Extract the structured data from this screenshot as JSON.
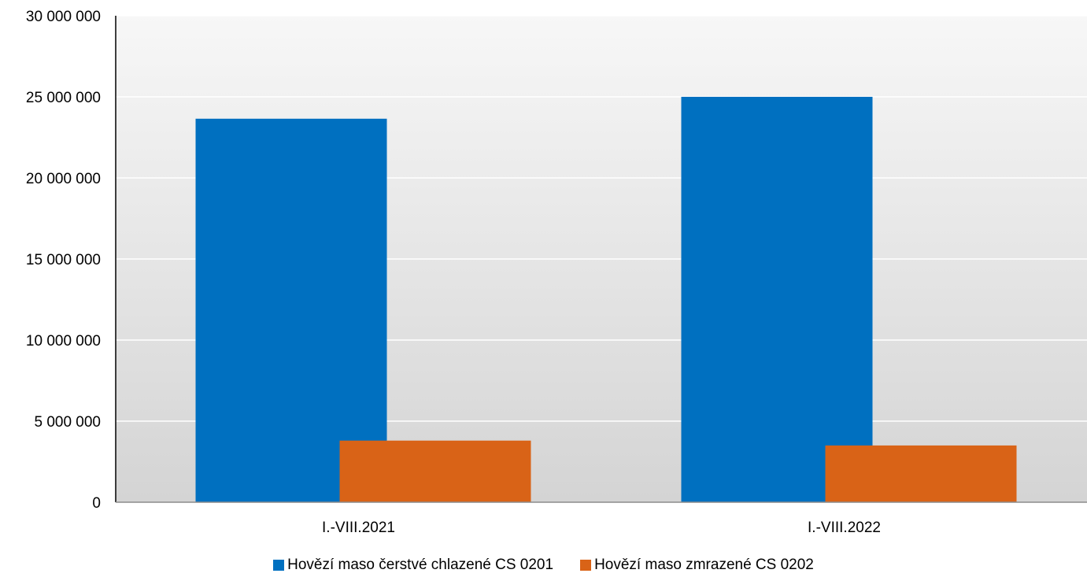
{
  "chart_data": {
    "type": "bar",
    "categories": [
      "I.-VIII.2021",
      "I.-VIII.2022"
    ],
    "series": [
      {
        "name": "Hovězí maso čerstvé chlazené CS 0201",
        "color": "#0070C0",
        "values": [
          23650000,
          25000000
        ]
      },
      {
        "name": "Hovězí maso zmrazené CS 0202",
        "color": "#D96317",
        "values": [
          3800000,
          3500000
        ]
      }
    ],
    "yticks": [
      {
        "value": 0,
        "label": "0"
      },
      {
        "value": 5000000,
        "label": "5 000 000"
      },
      {
        "value": 10000000,
        "label": "10 000 000"
      },
      {
        "value": 15000000,
        "label": "15 000 000"
      },
      {
        "value": 20000000,
        "label": "20 000 000"
      },
      {
        "value": 25000000,
        "label": "25 000 000"
      },
      {
        "value": 30000000,
        "label": "30 000 000"
      }
    ],
    "ylim": [
      0,
      30000000
    ],
    "title": "",
    "xlabel": "",
    "ylabel": "",
    "grid": true,
    "legend_position": "bottom"
  }
}
